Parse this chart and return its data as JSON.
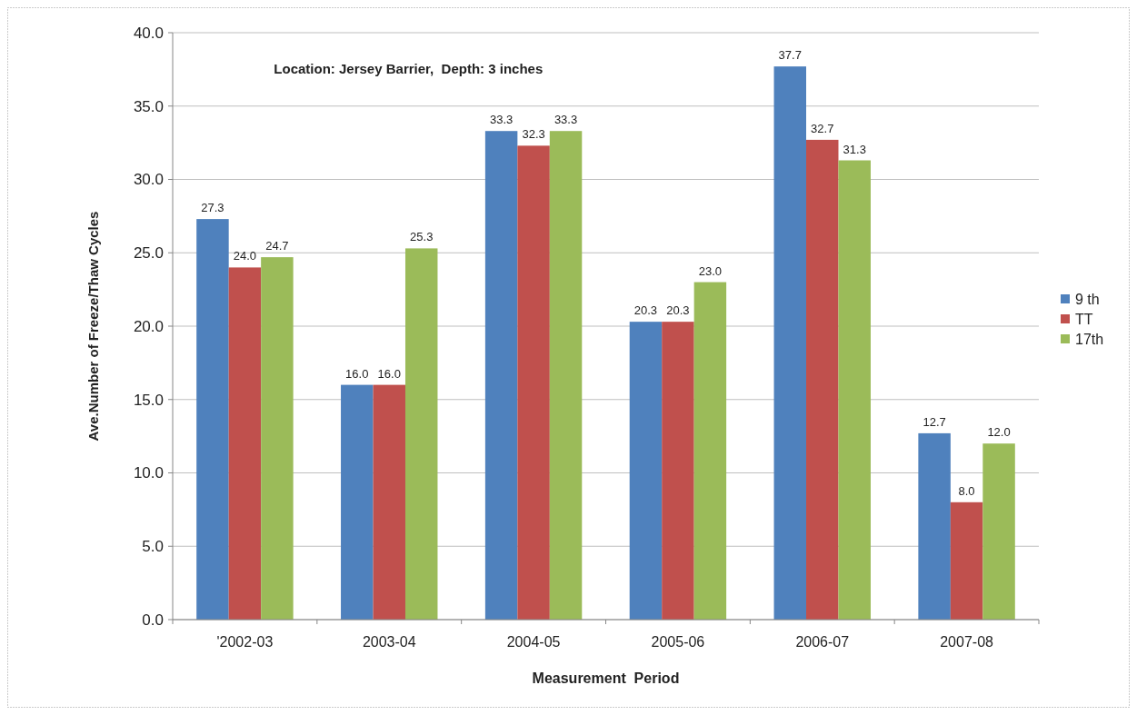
{
  "chart_data": {
    "type": "bar",
    "title": "Location: Jersey Barrier,  Depth: 3 inches",
    "xlabel": "Measurement  Period",
    "ylabel": "Ave.Number of Freeze/Thaw Cycles",
    "categories": [
      "'2002-03",
      "2003-04",
      "2004-05",
      "2005-06",
      "2006-07",
      "2007-08"
    ],
    "series": [
      {
        "name": "9 th",
        "color": "#4f81bd",
        "values": [
          27.3,
          16.0,
          33.3,
          20.3,
          37.7,
          12.7
        ],
        "value_labels": [
          "27.3",
          "16.0",
          "33.3",
          "20.3",
          "37.7",
          "12.7"
        ]
      },
      {
        "name": "TT",
        "color": "#c0504d",
        "values": [
          24.0,
          16.0,
          32.3,
          20.3,
          32.7,
          8.0
        ],
        "value_labels": [
          "24.0",
          "16.0",
          "32.3",
          "20.3",
          "32.7",
          "8.0"
        ]
      },
      {
        "name": "17th",
        "color": "#9bbb59",
        "values": [
          24.7,
          25.3,
          33.3,
          23.0,
          31.3,
          12.0
        ],
        "value_labels": [
          "24.7",
          "25.3",
          "33.3",
          "23.0",
          "31.3",
          "12.0"
        ]
      }
    ],
    "ylim": [
      0,
      40
    ],
    "yticks": [
      {
        "value": 0,
        "label": "0.0"
      },
      {
        "value": 5,
        "label": "5.0"
      },
      {
        "value": 10,
        "label": "10.0"
      },
      {
        "value": 15,
        "label": "15.0"
      },
      {
        "value": 20,
        "label": "20.0"
      },
      {
        "value": 25,
        "label": "25.0"
      },
      {
        "value": 30,
        "label": "30.0"
      },
      {
        "value": 35,
        "label": "35.0"
      },
      {
        "value": 40,
        "label": "40.0"
      }
    ],
    "grid": "y",
    "legend": "right"
  }
}
